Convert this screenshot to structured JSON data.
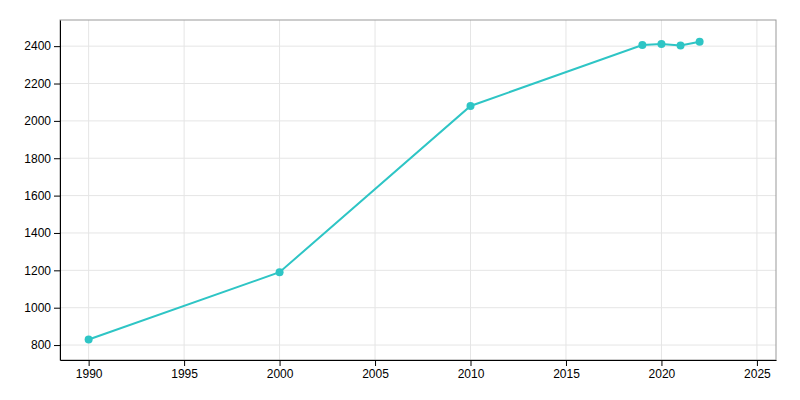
{
  "chart_data": {
    "type": "line",
    "x": [
      1990,
      2000,
      2010,
      2019,
      2020,
      2021,
      2022
    ],
    "values": [
      830,
      1190,
      2080,
      2406,
      2411,
      2403,
      2424
    ],
    "color": "#2ec5c5",
    "marker": "circle",
    "xlim": [
      1988.5,
      2026
    ],
    "ylim": [
      720,
      2540
    ],
    "xticks": [
      1990,
      1995,
      2000,
      2005,
      2010,
      2015,
      2020,
      2025
    ],
    "yticks": [
      800,
      1000,
      1200,
      1400,
      1600,
      1800,
      2000,
      2200,
      2400
    ],
    "grid": true
  }
}
